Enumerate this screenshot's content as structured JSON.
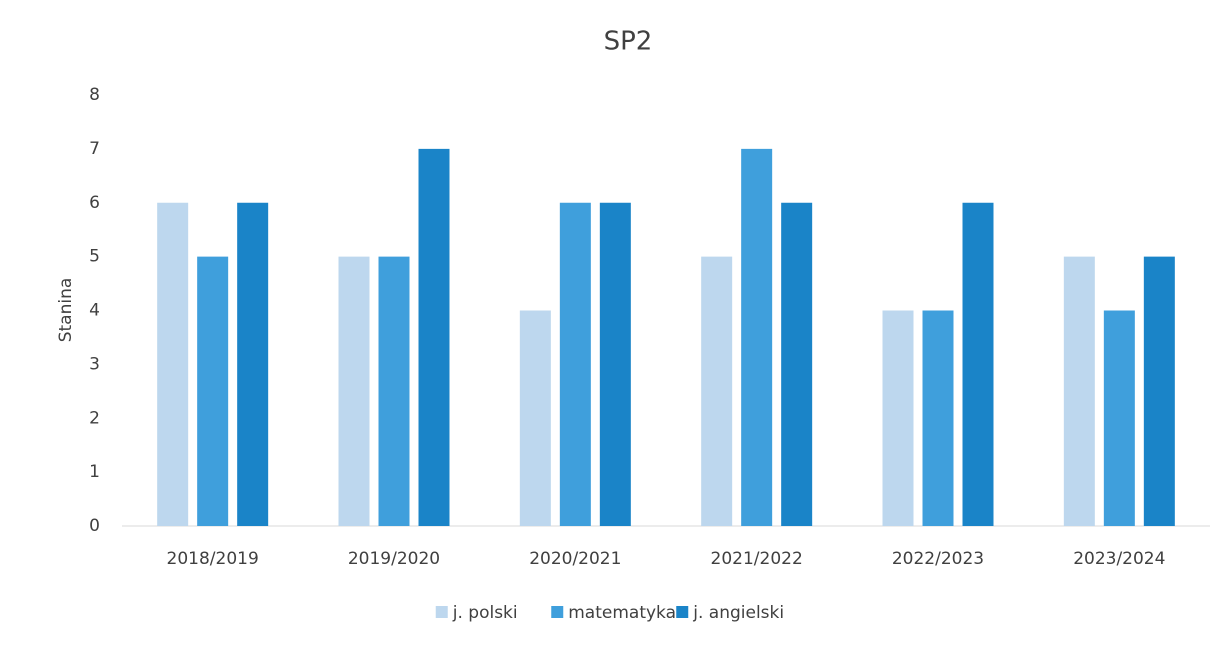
{
  "chart_data": {
    "type": "bar",
    "title": "SP2",
    "ylabel": "Stanina",
    "categories": [
      "2018/2019",
      "2019/2020",
      "2020/2021",
      "2021/2022",
      "2022/2023",
      "2023/2024"
    ],
    "series": [
      {
        "name": "j. polski",
        "color": "#bdd7ee",
        "values": [
          6,
          5,
          4,
          5,
          4,
          5
        ]
      },
      {
        "name": "matematyka",
        "color": "#3f9fdc",
        "values": [
          5,
          5,
          6,
          7,
          4,
          4
        ]
      },
      {
        "name": "j. angielski",
        "color": "#1a84c8",
        "values": [
          6,
          7,
          6,
          6,
          6,
          5
        ]
      }
    ],
    "ylim": [
      0,
      8
    ],
    "yticks": [
      0,
      1,
      2,
      3,
      4,
      5,
      6,
      7,
      8
    ],
    "grid": false,
    "legend": "bottom"
  }
}
